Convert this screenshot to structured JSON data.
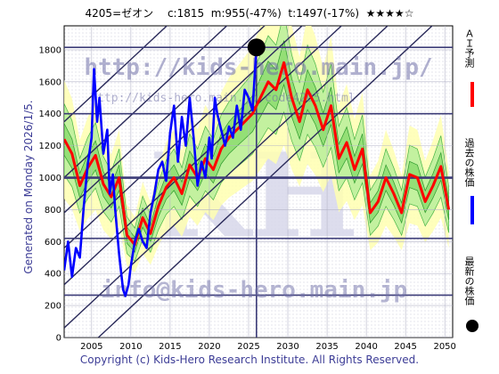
{
  "header": {
    "title": "4205=ゼオン　 c:1815  m:955(-47%)  t:1497(-17%)  ★★★★☆"
  },
  "side_note": "Generated on Monday 2026/1/5.",
  "footer": {
    "copyright": "Copyright (c) Kids-Hero Research Institute. All Rights Reserved."
  },
  "watermarks": {
    "url_top": "http://kids-hero.main.jp/",
    "url_mid": "http://kids-hero.main.jp/code4205.html",
    "email": "info@kids-hero.main.jp",
    "logo": "KH"
  },
  "legend": [
    {
      "label": "ＡＩ予測",
      "color": "#ff0000",
      "marker": "line"
    },
    {
      "label": "過去の株価",
      "color": "#0000ff",
      "marker": "line"
    },
    {
      "label": "最新の株価",
      "color": "#000000",
      "marker": "dot"
    }
  ],
  "chart_data": {
    "type": "line",
    "title": "4205=ゼオン",
    "xlim": [
      2001.5,
      2051
    ],
    "ylim": [
      0,
      1950
    ],
    "x_ticks": [
      2005,
      2010,
      2015,
      2020,
      2025,
      2030,
      2035,
      2040,
      2045,
      2050
    ],
    "y_ticks": [
      0,
      200,
      400,
      600,
      800,
      1000,
      1200,
      1400,
      1600,
      1800
    ],
    "grid": true,
    "horizontal_levels": [
      {
        "y": 1815,
        "color": "#3c3c78"
      },
      {
        "y": 1400,
        "color": "#3c3c78"
      },
      {
        "y": 1000,
        "color": "#3c3c78",
        "heavy": true
      },
      {
        "y": 620,
        "color": "#3c3c78"
      },
      {
        "y": 265,
        "color": "#3c3c78"
      }
    ],
    "current": {
      "x": 2026.0,
      "y": 1815
    },
    "stats": {
      "c": 1815,
      "m": 955,
      "m_pct": -47,
      "t": 1497,
      "t_pct": -17,
      "stars": 4
    },
    "trend_lines": [
      {
        "x1": 2001.5,
        "y1": 1350,
        "x2": 2051,
        "y2": 3620
      },
      {
        "x1": 2001.5,
        "y1": 1000,
        "x2": 2051,
        "y2": 3270
      },
      {
        "x1": 2001.5,
        "y1": 780,
        "x2": 2051,
        "y2": 3050
      },
      {
        "x1": 2001.5,
        "y1": 560,
        "x2": 2051,
        "y2": 2830
      },
      {
        "x1": 2001.5,
        "y1": 330,
        "x2": 2051,
        "y2": 2600
      },
      {
        "x1": 2001.5,
        "y1": 60,
        "x2": 2051,
        "y2": 2330
      },
      {
        "x1": 2001.5,
        "y1": -200,
        "x2": 2051,
        "y2": 2070
      }
    ],
    "series": [
      {
        "name": "過去の株価",
        "color": "#0000ff",
        "x": [
          2001.5,
          2002.0,
          2002.5,
          2003.0,
          2003.5,
          2004.0,
          2004.5,
          2005.0,
          2005.3,
          2005.7,
          2006.0,
          2006.5,
          2007.0,
          2007.3,
          2007.7,
          2008.0,
          2008.5,
          2009.0,
          2009.3,
          2009.7,
          2010.0,
          2010.5,
          2011.0,
          2011.5,
          2012.0,
          2012.5,
          2013.0,
          2013.5,
          2014.0,
          2014.5,
          2015.0,
          2015.5,
          2016.0,
          2016.5,
          2017.0,
          2017.5,
          2018.0,
          2018.5,
          2019.0,
          2019.5,
          2020.0,
          2020.3,
          2020.7,
          2021.0,
          2021.5,
          2022.0,
          2022.5,
          2023.0,
          2023.5,
          2024.0,
          2024.5,
          2025.0,
          2025.5,
          2026.0
        ],
        "values": [
          420,
          600,
          380,
          560,
          500,
          820,
          1080,
          1250,
          1680,
          1350,
          1500,
          1150,
          1300,
          900,
          1020,
          800,
          520,
          300,
          260,
          330,
          450,
          600,
          680,
          600,
          560,
          780,
          900,
          1050,
          1100,
          980,
          1280,
          1450,
          1100,
          1380,
          1200,
          1500,
          1250,
          950,
          1100,
          1000,
          1250,
          1120,
          1500,
          1400,
          1300,
          1200,
          1320,
          1250,
          1450,
          1300,
          1550,
          1500,
          1420,
          1815
        ]
      },
      {
        "name": "ＡＩ予測",
        "color": "#ff0000",
        "x": [
          2001.5,
          2002.5,
          2003.5,
          2004.5,
          2005.5,
          2006.5,
          2007.5,
          2008.5,
          2009.5,
          2010.5,
          2011.5,
          2012.5,
          2013.5,
          2014.5,
          2015.5,
          2016.5,
          2017.5,
          2018.5,
          2019.5,
          2020.5,
          2021.5,
          2022.5,
          2023.5,
          2024.5,
          2025.5,
          2026.5,
          2027.5,
          2028.5,
          2029.5,
          2030.5,
          2031.5,
          2032.5,
          2033.5,
          2034.5,
          2035.5,
          2036.5,
          2037.5,
          2038.5,
          2039.5,
          2040.5,
          2041.5,
          2042.5,
          2043.5,
          2044.5,
          2045.5,
          2046.5,
          2047.5,
          2048.5,
          2049.5,
          2050.5
        ],
        "values": [
          1240,
          1150,
          950,
          1060,
          1140,
          960,
          880,
          1000,
          640,
          580,
          750,
          650,
          820,
          940,
          1000,
          900,
          1080,
          1000,
          1120,
          1050,
          1180,
          1250,
          1300,
          1350,
          1400,
          1500,
          1600,
          1550,
          1720,
          1500,
          1350,
          1550,
          1450,
          1300,
          1450,
          1120,
          1220,
          1050,
          1180,
          780,
          850,
          1000,
          900,
          780,
          1020,
          1000,
          850,
          950,
          1070,
          800
        ]
      }
    ]
  }
}
